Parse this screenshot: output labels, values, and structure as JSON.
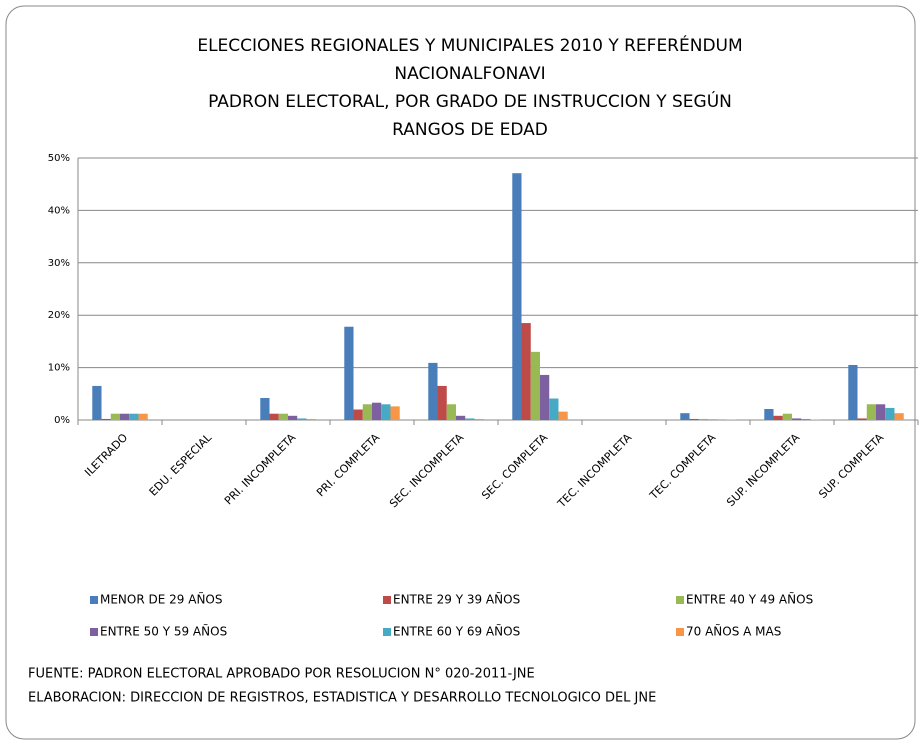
{
  "chart_data": {
    "type": "bar",
    "title": [
      "ELECCIONES REGIONALES Y MUNICIPALES 2010 Y REFERÉNDUM",
      "NACIONALFONAVI",
      "PADRON ELECTORAL, POR GRADO DE INSTRUCCION Y SEGÚN",
      "RANGOS DE EDAD"
    ],
    "categories": [
      "ILETRADO",
      "EDU. ESPECIAL",
      "PRI. INCOMPLETA",
      "PRI. COMPLETA",
      "SEC. INCOMPLETA",
      "SEC. COMPLETA",
      "TEC. INCOMPLETA",
      "TEC. COMPLETA",
      "SUP. INCOMPLETA",
      "SUP. COMPLETA"
    ],
    "series": [
      {
        "name": "MENOR DE 29 AÑOS",
        "color": "#4a7ebb",
        "values": [
          6.5,
          0,
          4.2,
          17.8,
          10.9,
          47.1,
          0,
          1.3,
          2.1,
          10.5
        ]
      },
      {
        "name": "ENTRE 29 Y 39 AÑOS",
        "color": "#be4b48",
        "values": [
          0.2,
          0,
          1.2,
          2.0,
          6.5,
          18.5,
          0,
          0.2,
          0.8,
          0.3
        ]
      },
      {
        "name": "ENTRE 40 Y 49 AÑOS",
        "color": "#98b954",
        "values": [
          1.2,
          0,
          1.2,
          3.0,
          3.0,
          13.0,
          0,
          0.2,
          1.2,
          3.0
        ]
      },
      {
        "name": "ENTRE 50 Y 59 AÑOS",
        "color": "#7d60a0",
        "values": [
          1.2,
          0,
          0.8,
          3.3,
          0.8,
          8.6,
          0,
          0.1,
          0.3,
          3.0
        ]
      },
      {
        "name": "ENTRE 60 Y 69 AÑOS",
        "color": "#46aac5",
        "values": [
          1.2,
          0,
          0.3,
          3.0,
          0.3,
          4.1,
          0,
          0.1,
          0.2,
          2.3
        ]
      },
      {
        "name": "70 AÑOS A MAS",
        "color": "#f79646",
        "values": [
          1.2,
          0,
          0.2,
          2.6,
          0.2,
          1.6,
          0,
          0.1,
          0.1,
          1.3
        ]
      }
    ],
    "ylim": [
      0,
      50
    ],
    "yticks": [
      {
        "value": 0,
        "label": "0%"
      },
      {
        "value": 10,
        "label": "10%"
      },
      {
        "value": 20,
        "label": "20%"
      },
      {
        "value": 30,
        "label": "30%"
      },
      {
        "value": 40,
        "label": "40%"
      },
      {
        "value": 50,
        "label": "50%"
      }
    ],
    "grid": true,
    "notes": [
      "FUENTE: PADRON ELECTORAL APROBADO POR RESOLUCION N° 020-2011-JNE",
      "ELABORACION: DIRECCION DE REGISTROS, ESTADISTICA Y DESARROLLO TECNOLOGICO DEL JNE"
    ]
  }
}
